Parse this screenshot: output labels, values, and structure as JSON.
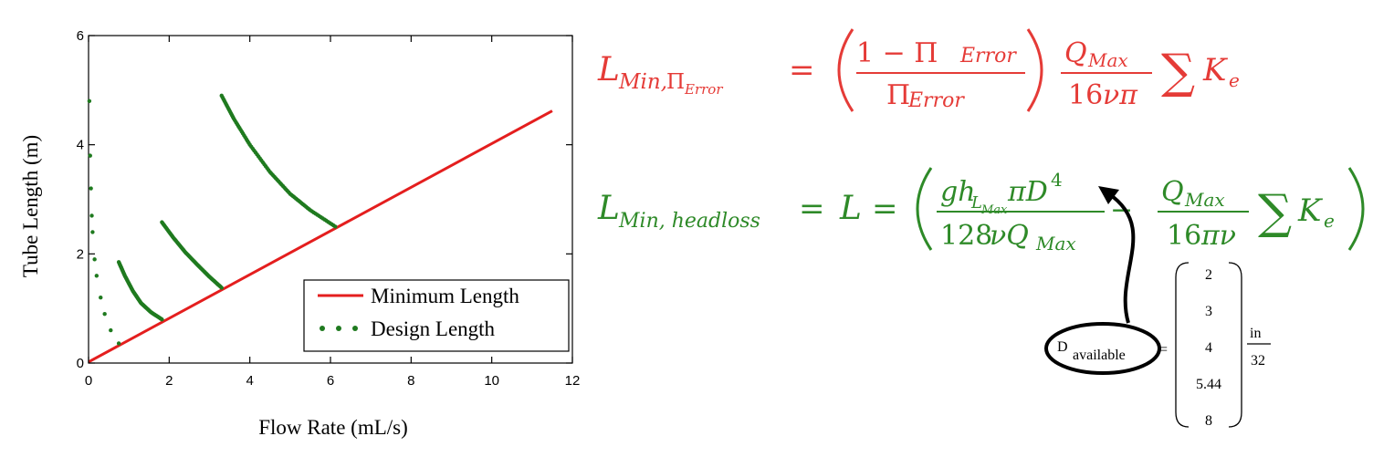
{
  "chart_data": {
    "type": "line",
    "xlabel": "Flow Rate (mL/s)",
    "ylabel": "Tube Length (m)",
    "xlim": [
      0,
      12
    ],
    "ylim": [
      0,
      6
    ],
    "x_ticks": [
      "0",
      "2",
      "4",
      "6",
      "8",
      "10",
      "12"
    ],
    "y_ticks": [
      "0",
      "2",
      "4",
      "6"
    ],
    "grid": false,
    "legend_position": "bottom-right",
    "series": [
      {
        "name": "Minimum Length",
        "style": "solid-line",
        "color": "#e41e1e",
        "points": [
          [
            0,
            0.02
          ],
          [
            11.5,
            4.62
          ]
        ]
      },
      {
        "name": "Design Length",
        "style": "dotted",
        "color": "#1f7a1f",
        "segments": [
          [
            [
              0.02,
              4.8
            ],
            [
              0.04,
              3.8
            ],
            [
              0.06,
              3.2
            ],
            [
              0.08,
              2.7
            ],
            [
              0.1,
              2.4
            ],
            [
              0.15,
              1.9
            ],
            [
              0.2,
              1.6
            ],
            [
              0.3,
              1.2
            ],
            [
              0.4,
              0.9
            ],
            [
              0.55,
              0.6
            ],
            [
              0.75,
              0.36
            ]
          ],
          [
            [
              0.75,
              1.85
            ],
            [
              0.9,
              1.6
            ],
            [
              1.1,
              1.32
            ],
            [
              1.3,
              1.1
            ],
            [
              1.55,
              0.93
            ],
            [
              1.82,
              0.8
            ]
          ],
          [
            [
              1.82,
              2.58
            ],
            [
              2.1,
              2.3
            ],
            [
              2.4,
              2.03
            ],
            [
              2.7,
              1.8
            ],
            [
              3.0,
              1.58
            ],
            [
              3.3,
              1.38
            ]
          ],
          [
            [
              3.3,
              4.9
            ],
            [
              3.6,
              4.48
            ],
            [
              4.0,
              4.0
            ],
            [
              4.5,
              3.5
            ],
            [
              5.0,
              3.1
            ],
            [
              5.5,
              2.8
            ],
            [
              6.12,
              2.5
            ]
          ]
        ]
      }
    ]
  },
  "equations": {
    "min_error": "L_{Min,Π_Error} = ((1 − Π_Error)/Π_Error)(Q_Max/(16νπ)) ΣK_e",
    "min_headloss": "L_{Min,headloss} = L = (g h_{L_Max} π D^4/(128 ν Q_Max) − Q_Max/(16πν) ΣK_e)"
  },
  "d_available": {
    "label_main": "D",
    "label_sub": "available",
    "values": [
      "2",
      "3",
      "4",
      "5.44",
      "8"
    ],
    "unit_num": "in",
    "unit_den": "32"
  },
  "colors": {
    "red_equation": "#e53b37",
    "green_equation": "#2e8a28"
  }
}
